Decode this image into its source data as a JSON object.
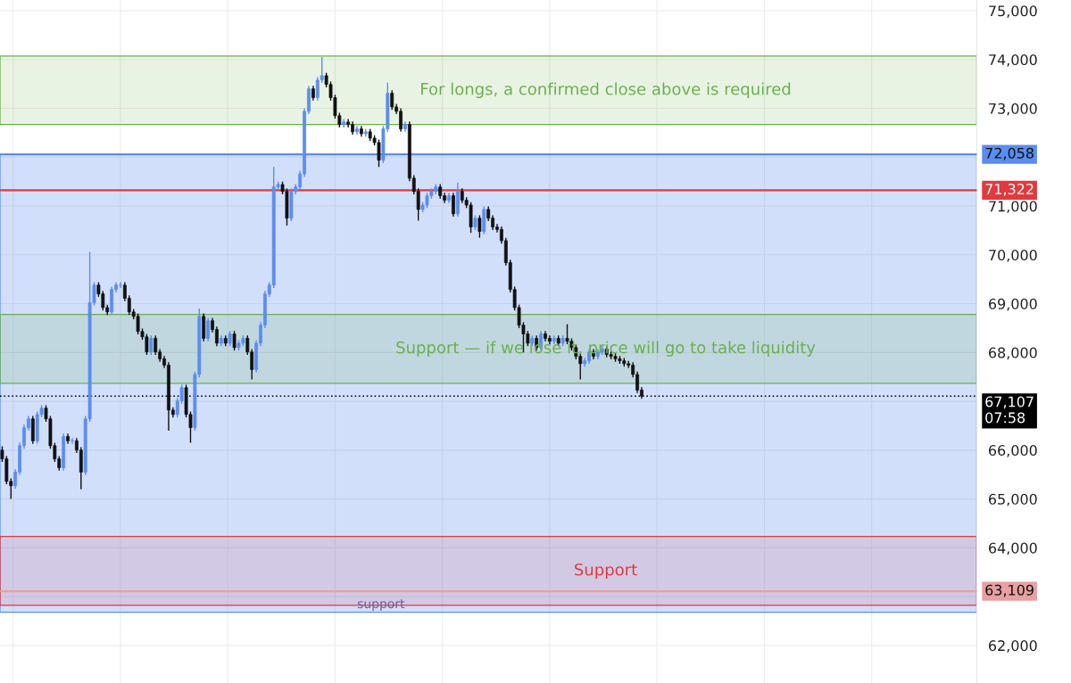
{
  "chart_data": {
    "type": "candlestick",
    "categories": [
      null,
      null,
      null,
      null,
      null,
      null,
      null,
      null,
      null,
      null,
      null,
      null,
      null,
      null,
      null,
      null,
      null,
      null,
      null,
      null,
      null,
      null,
      null,
      null,
      null,
      null,
      null,
      null,
      null,
      null,
      null,
      null,
      null,
      null,
      null,
      null,
      null,
      null,
      null,
      null,
      null,
      null,
      null,
      null,
      null,
      null,
      null,
      null,
      null,
      null,
      null,
      null,
      null,
      null,
      null,
      null,
      null,
      null,
      null,
      null,
      null,
      null,
      null,
      null,
      null,
      null,
      null,
      null,
      null,
      null,
      null,
      null,
      null,
      null,
      null,
      null,
      null,
      null,
      null,
      null,
      null,
      null,
      null,
      null,
      null,
      null,
      null,
      null,
      null,
      null,
      null,
      null,
      null,
      null,
      null,
      null,
      null,
      null,
      null,
      null,
      null,
      null,
      null,
      null,
      null,
      null,
      null,
      null,
      null,
      null,
      null,
      null,
      null,
      null,
      null,
      null,
      null,
      null,
      null,
      null,
      null,
      null,
      null,
      null,
      null,
      null,
      null,
      null,
      null,
      null,
      null,
      null,
      null,
      null,
      null,
      null,
      null,
      null,
      null,
      null,
      null,
      null,
      null,
      null,
      null,
      null,
      null,
      null,
      null,
      null,
      null,
      null,
      null,
      null,
      null,
      null,
      null,
      null,
      null,
      null,
      null,
      null,
      null,
      null,
      null,
      null,
      null,
      null,
      null,
      null,
      null,
      null,
      null,
      null,
      null,
      null,
      null,
      null,
      null,
      null,
      null,
      null,
      null,
      null,
      null,
      null,
      null,
      null,
      null,
      null,
      null,
      null,
      null,
      null,
      null,
      null,
      null,
      null,
      null,
      null,
      null,
      null,
      null,
      null,
      null,
      null,
      null,
      null,
      null,
      null,
      null,
      null,
      null,
      null,
      null,
      null,
      null,
      null,
      null,
      null,
      null,
      null,
      null
    ],
    "ohlc": [
      [
        66000,
        66080,
        65760,
        65820
      ],
      [
        65820,
        65880,
        65300,
        65360
      ],
      [
        65360,
        65420,
        65000,
        65270
      ],
      [
        65270,
        65610,
        65210,
        65550
      ],
      [
        65550,
        66150,
        65490,
        66090
      ],
      [
        66090,
        66520,
        66030,
        66460
      ],
      [
        66460,
        66700,
        66400,
        66640
      ],
      [
        66640,
        66700,
        66130,
        66190
      ],
      [
        66190,
        66790,
        66130,
        66730
      ],
      [
        66730,
        66920,
        66670,
        66860
      ],
      [
        66860,
        66920,
        66580,
        66640
      ],
      [
        66640,
        66700,
        66030,
        66090
      ],
      [
        66090,
        66150,
        65760,
        65820
      ],
      [
        65820,
        65880,
        65580,
        65640
      ],
      [
        65640,
        66340,
        65580,
        66280
      ],
      [
        66280,
        66340,
        66130,
        66190
      ],
      [
        66190,
        66250,
        66130,
        66190
      ],
      [
        66190,
        66250,
        65940,
        66000
      ],
      [
        66000,
        66060,
        65200,
        65550
      ],
      [
        65550,
        66700,
        65490,
        66640
      ],
      [
        66640,
        70060,
        66580,
        69020
      ],
      [
        69020,
        69440,
        68960,
        69380
      ],
      [
        69380,
        69440,
        69140,
        69200
      ],
      [
        69200,
        69260,
        68860,
        68920
      ],
      [
        68920,
        68980,
        68770,
        68830
      ],
      [
        68830,
        69350,
        68770,
        69290
      ],
      [
        69290,
        69440,
        69230,
        69380
      ],
      [
        69380,
        69440,
        69320,
        69380
      ],
      [
        69380,
        69440,
        69050,
        69110
      ],
      [
        69110,
        69170,
        68770,
        68830
      ],
      [
        68830,
        68890,
        68680,
        68740
      ],
      [
        68740,
        68800,
        68370,
        68430
      ],
      [
        68430,
        68490,
        68260,
        68320
      ],
      [
        68320,
        68380,
        67950,
        68010
      ],
      [
        68010,
        68350,
        67950,
        68290
      ],
      [
        68290,
        68350,
        67950,
        68010
      ],
      [
        68010,
        68070,
        67810,
        67870
      ],
      [
        67870,
        67930,
        67680,
        67740
      ],
      [
        67740,
        67800,
        66400,
        66820
      ],
      [
        66820,
        66880,
        66670,
        66730
      ],
      [
        66730,
        67070,
        66670,
        67010
      ],
      [
        67010,
        67340,
        66950,
        67280
      ],
      [
        67280,
        67340,
        66670,
        66730
      ],
      [
        66730,
        66790,
        66150,
        66460
      ],
      [
        66460,
        67610,
        66400,
        67550
      ],
      [
        67550,
        68900,
        67490,
        68740
      ],
      [
        68740,
        68800,
        68230,
        68290
      ],
      [
        68290,
        68710,
        68230,
        68650
      ],
      [
        68650,
        68710,
        68410,
        68470
      ],
      [
        68470,
        68530,
        68130,
        68190
      ],
      [
        68190,
        68350,
        68130,
        68290
      ],
      [
        68290,
        68350,
        68130,
        68190
      ],
      [
        68190,
        68440,
        68130,
        68380
      ],
      [
        68380,
        68440,
        68040,
        68100
      ],
      [
        68100,
        68250,
        68040,
        68190
      ],
      [
        68190,
        68350,
        68130,
        68290
      ],
      [
        68290,
        68350,
        67950,
        68010
      ],
      [
        68010,
        68070,
        67450,
        67650
      ],
      [
        67650,
        68250,
        67590,
        68190
      ],
      [
        68190,
        68620,
        68130,
        68560
      ],
      [
        68560,
        69260,
        68500,
        69200
      ],
      [
        69200,
        69440,
        69140,
        69380
      ],
      [
        69380,
        71800,
        69320,
        71390
      ],
      [
        71390,
        71500,
        71330,
        71440
      ],
      [
        71440,
        71500,
        71240,
        71300
      ],
      [
        71300,
        71360,
        70600,
        70750
      ],
      [
        70750,
        71360,
        70690,
        71300
      ],
      [
        71300,
        71450,
        71240,
        71390
      ],
      [
        71390,
        71720,
        71330,
        71660
      ],
      [
        71660,
        73000,
        71600,
        72940
      ],
      [
        72940,
        73460,
        72880,
        73400
      ],
      [
        73400,
        73460,
        73160,
        73220
      ],
      [
        73220,
        73640,
        73160,
        73580
      ],
      [
        73580,
        74050,
        73520,
        73670
      ],
      [
        73670,
        73730,
        73430,
        73490
      ],
      [
        73490,
        73550,
        73160,
        73220
      ],
      [
        73220,
        73280,
        72790,
        72850
      ],
      [
        72850,
        72910,
        72610,
        72670
      ],
      [
        72670,
        72780,
        72610,
        72720
      ],
      [
        72720,
        72780,
        72610,
        72670
      ],
      [
        72670,
        72730,
        72460,
        72520
      ],
      [
        72520,
        72640,
        72460,
        72580
      ],
      [
        72580,
        72640,
        72420,
        72480
      ],
      [
        72480,
        72580,
        72420,
        72520
      ],
      [
        72520,
        72580,
        72330,
        72390
      ],
      [
        72390,
        72450,
        72240,
        72300
      ],
      [
        72300,
        72360,
        71800,
        71940
      ],
      [
        71940,
        72640,
        71880,
        72580
      ],
      [
        72580,
        73530,
        72520,
        73310
      ],
      [
        73310,
        73370,
        72970,
        73030
      ],
      [
        73030,
        73090,
        72880,
        72940
      ],
      [
        72940,
        73000,
        72520,
        72580
      ],
      [
        72580,
        72730,
        72520,
        72670
      ],
      [
        72670,
        72730,
        71510,
        71570
      ],
      [
        71570,
        71630,
        71240,
        71300
      ],
      [
        71300,
        71360,
        70700,
        70930
      ],
      [
        70930,
        71080,
        70870,
        71020
      ],
      [
        71020,
        71270,
        70960,
        71210
      ],
      [
        71210,
        71360,
        71150,
        71300
      ],
      [
        71300,
        71450,
        71240,
        71390
      ],
      [
        71390,
        71450,
        71150,
        71210
      ],
      [
        71210,
        71270,
        71060,
        71120
      ],
      [
        71120,
        71270,
        71060,
        71210
      ],
      [
        71210,
        71270,
        70780,
        70840
      ],
      [
        70840,
        71480,
        70780,
        71300
      ],
      [
        71300,
        71360,
        71060,
        71120
      ],
      [
        71120,
        71180,
        70960,
        71020
      ],
      [
        71020,
        71080,
        70450,
        70570
      ],
      [
        70570,
        70810,
        70510,
        70750
      ],
      [
        70750,
        70810,
        70350,
        70480
      ],
      [
        70480,
        70990,
        70420,
        70930
      ],
      [
        70930,
        70990,
        70690,
        70750
      ],
      [
        70750,
        70810,
        70510,
        70570
      ],
      [
        70570,
        70630,
        70460,
        70520
      ],
      [
        70520,
        70580,
        70230,
        70290
      ],
      [
        70290,
        70350,
        69780,
        69840
      ],
      [
        69840,
        69900,
        69230,
        69290
      ],
      [
        69290,
        69350,
        68860,
        68920
      ],
      [
        68920,
        68980,
        68500,
        68560
      ],
      [
        68560,
        68620,
        68000,
        68380
      ],
      [
        68380,
        68440,
        68130,
        68190
      ],
      [
        68190,
        68350,
        68130,
        68290
      ],
      [
        68290,
        68350,
        68040,
        68100
      ],
      [
        68100,
        68440,
        68040,
        68380
      ],
      [
        68380,
        68440,
        68230,
        68290
      ],
      [
        68290,
        68350,
        68170,
        68230
      ],
      [
        68230,
        68350,
        68170,
        68290
      ],
      [
        68290,
        68350,
        68130,
        68190
      ],
      [
        68190,
        68350,
        68130,
        68290
      ],
      [
        68290,
        68580,
        68170,
        68230
      ],
      [
        68230,
        68290,
        68040,
        68100
      ],
      [
        68100,
        68160,
        67860,
        67920
      ],
      [
        67920,
        67980,
        67450,
        67770
      ],
      [
        67770,
        67890,
        67710,
        67830
      ],
      [
        67830,
        68070,
        67770,
        68010
      ],
      [
        68010,
        68070,
        67860,
        67920
      ],
      [
        67920,
        68070,
        67860,
        68010
      ],
      [
        68010,
        68130,
        67950,
        68070
      ],
      [
        68070,
        68130,
        67900,
        67960
      ],
      [
        67960,
        68020,
        67860,
        67920
      ],
      [
        67920,
        67980,
        67810,
        67870
      ],
      [
        67870,
        67930,
        67770,
        67830
      ],
      [
        67830,
        67890,
        67710,
        67770
      ],
      [
        67770,
        67830,
        67680,
        67740
      ],
      [
        67740,
        67800,
        67490,
        67550
      ],
      [
        67550,
        67610,
        67170,
        67230
      ],
      [
        67230,
        67290,
        67050,
        67107
      ],
      null,
      null,
      null,
      null,
      null,
      null,
      null,
      null,
      null,
      null,
      null,
      null,
      null,
      null,
      null,
      null,
      null,
      null,
      null,
      null,
      null,
      null,
      null,
      null,
      null,
      null,
      null,
      null,
      null,
      null,
      null,
      null,
      null,
      null,
      null,
      null,
      null,
      null,
      null,
      null,
      null,
      null,
      null,
      null,
      null,
      null,
      null,
      null,
      null,
      null,
      null,
      null,
      null,
      null,
      null,
      null,
      null,
      null,
      null,
      null,
      null,
      null,
      null,
      null,
      null,
      null,
      null,
      null,
      null,
      null,
      null,
      null,
      null,
      null,
      null,
      null
    ],
    "ylim": [
      61230,
      75220
    ],
    "yticks": [
      {
        "value": 62000,
        "label": "62,000"
      },
      {
        "value": 63000,
        "label": null
      },
      {
        "value": 64000,
        "label": "64,000"
      },
      {
        "value": 65000,
        "label": "65,000"
      },
      {
        "value": 66000,
        "label": "66,000"
      },
      {
        "value": 67000,
        "label": null
      },
      {
        "value": 68000,
        "label": "68,000"
      },
      {
        "value": 69000,
        "label": "69,000"
      },
      {
        "value": 70000,
        "label": "70,000"
      },
      {
        "value": 71000,
        "label": "71,000"
      },
      {
        "value": 72000,
        "label": null
      },
      {
        "value": 73000,
        "label": "73,000"
      },
      {
        "value": 74000,
        "label": "74,000"
      },
      {
        "value": 75000,
        "label": "75,000"
      }
    ],
    "tick_labels": "y",
    "grid": true,
    "bands": [
      {
        "axis": "y",
        "from": 62680,
        "to": 72058,
        "color": "#5b8def"
      },
      {
        "axis": "y",
        "from": 72670,
        "to": 74070,
        "label": "For longs, a confirmed close above is required",
        "color": "#6ab04c"
      },
      {
        "axis": "y",
        "from": 67370,
        "to": 68780,
        "label": "Support — if we lose it, price will go to take liquidity",
        "color": "#6ab04c"
      },
      {
        "axis": "y",
        "from": 62820,
        "to": 64230,
        "label": "Support",
        "color": "#e0393e"
      }
    ],
    "ref_lines": [
      {
        "axis": "y",
        "value": 72058,
        "label": "72,058",
        "color": "#5b8def",
        "line_style": "solid"
      },
      {
        "axis": "y",
        "value": 71322,
        "label": "71,322",
        "color": "#e0393e",
        "line_style": "solid"
      },
      {
        "axis": "y",
        "value": 67107,
        "label": "67,107\n07:58",
        "color": "#000000",
        "line_style": "dotted"
      },
      {
        "axis": "y",
        "value": 63109,
        "label": "63,109",
        "color": "#e8a0a0",
        "line_style": "solid"
      }
    ],
    "annotations": [
      {
        "text": "support",
        "y": 63109
      }
    ]
  }
}
